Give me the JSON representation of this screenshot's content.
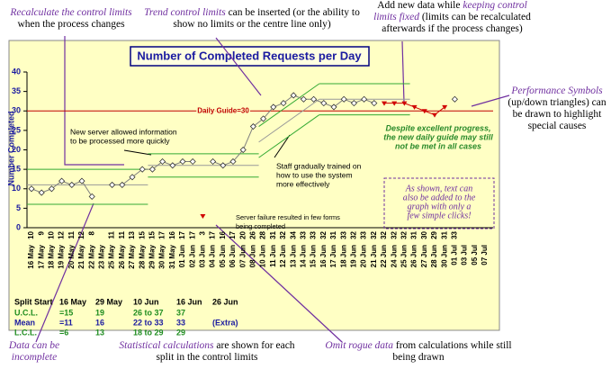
{
  "chart_data": {
    "type": "line",
    "title": "Number of Completed Requests per Day",
    "y_label": "Number Completed",
    "categories": [
      "16 May",
      "17 May",
      "18 May",
      "19 May",
      "20 May",
      "21 May",
      "22 May",
      "23 May",
      "25 May",
      "26 May",
      "27 May",
      "28 May",
      "29 May",
      "30 May",
      "31 May",
      "01 Jun",
      "02 Jun",
      "03 Jun",
      "04 Jun",
      "05 Jun",
      "06 Jun",
      "07 Jun",
      "08 Jun",
      "10 Jun",
      "11 Jun",
      "12 Jun",
      "13 Jun",
      "14 Jun",
      "15 Jun",
      "16 Jun",
      "17 Jun",
      "18 Jun",
      "19 Jun",
      "20 Jun",
      "21 Jun",
      "22 Jun",
      "24 Jun",
      "25 Jun",
      "26 Jun",
      "27 Jun",
      "28 Jun",
      "30 Jun",
      "01 Jul",
      "03 Jul",
      "05 Jul",
      "07 Jul"
    ],
    "series": [
      {
        "color": "#7f7f7f",
        "marker": "diamond",
        "values": [
          10,
          9,
          10,
          12,
          11,
          12,
          8,
          null,
          11,
          11,
          13,
          15,
          15,
          17,
          16,
          17,
          17,
          null,
          17,
          16,
          17,
          20,
          26,
          28,
          31,
          32,
          34,
          33,
          33,
          32,
          31,
          33,
          32,
          33,
          32,
          null,
          null,
          null,
          null,
          null,
          null,
          null,
          33,
          null,
          null,
          null
        ]
      },
      {
        "color": "#d00000",
        "marker": "triangle",
        "values": [
          null,
          null,
          null,
          null,
          null,
          null,
          null,
          null,
          null,
          null,
          null,
          null,
          null,
          null,
          null,
          null,
          null,
          3,
          null,
          null,
          null,
          null,
          null,
          null,
          null,
          null,
          null,
          null,
          null,
          null,
          null,
          null,
          null,
          null,
          null,
          32,
          32,
          32,
          31,
          30,
          29,
          31,
          null,
          null,
          null,
          null
        ]
      }
    ],
    "ylim": [
      0,
      40
    ],
    "yticks": [
      0,
      5,
      10,
      15,
      20,
      25,
      30,
      35,
      40
    ],
    "guide": {
      "value": 30,
      "label": "Daily Guide=30",
      "color": "#c00000"
    },
    "limit_color": "#33aa33",
    "mean_color": "#999999",
    "splits": {
      "header": "Split Start",
      "starts": [
        "16 May",
        "29 May",
        "10 Jun",
        "16 Jun",
        "26 Jun"
      ],
      "ucl_label": "U.C.L.",
      "mean_label": "Mean",
      "lcl_label": "L.C.L.",
      "ucl": [
        {
          "value": 15,
          "label": "=15"
        },
        19,
        {
          "value": [
            26,
            37
          ],
          "label": "26 to 37"
        },
        37
      ],
      "mean": [
        {
          "value": 11,
          "label": "=11"
        },
        16,
        {
          "value": [
            22,
            33
          ],
          "label": "22 to 33"
        },
        33
      ],
      "lcl": [
        {
          "value": 6,
          "label": "=6"
        },
        13,
        {
          "value": [
            18,
            29
          ],
          "label": "18 to 29"
        },
        29
      ],
      "extra": "(Extra)"
    },
    "notes": {
      "server": [
        "New server allowed information",
        "to be processed more quickly"
      ],
      "staff": [
        "Staff gradually trained on",
        "how to use the system",
        "more effectively"
      ],
      "failure": [
        "Server failure resulted in few forms",
        "being completed"
      ],
      "progress": [
        "Despite excellent progress,",
        "the new daily guide may still",
        "not be met in all cases"
      ],
      "text_box": [
        "As shown, text can",
        "also be added to the",
        "graph with only a",
        "few simple clicks!"
      ]
    },
    "callouts": [
      {
        "parts": [
          {
            "text": "Recalculate the control limits",
            "em": true
          },
          {
            "text": " when the process changes",
            "em": false
          }
        ]
      },
      {
        "parts": [
          {
            "text": "Trend control limits",
            "em": true
          },
          {
            "text": " can be inserted (or the ability to show no limits or the centre line only)",
            "em": false
          }
        ]
      },
      {
        "parts": [
          {
            "text": "Add new data while ",
            "em": false
          },
          {
            "text": "keeping control limits fixed",
            "em": true
          },
          {
            "text": " (limits can be recalculated afterwards if the process changes)",
            "em": false
          }
        ]
      },
      {
        "parts": [
          {
            "text": "Performance Symbols",
            "em": true
          },
          {
            "text": " (up/down triangles) can be drawn to highlight special causes",
            "em": false
          }
        ]
      },
      {
        "parts": [
          {
            "text": "Data can be incomplete",
            "em": true
          }
        ]
      },
      {
        "parts": [
          {
            "text": "Statistical calculations",
            "em": true
          },
          {
            "text": " are shown for each split in the control limits",
            "em": false
          }
        ]
      },
      {
        "parts": [
          {
            "text": "Omit rogue data",
            "em": true
          },
          {
            "text": " from calculations while still being drawn",
            "em": false
          }
        ]
      }
    ]
  }
}
